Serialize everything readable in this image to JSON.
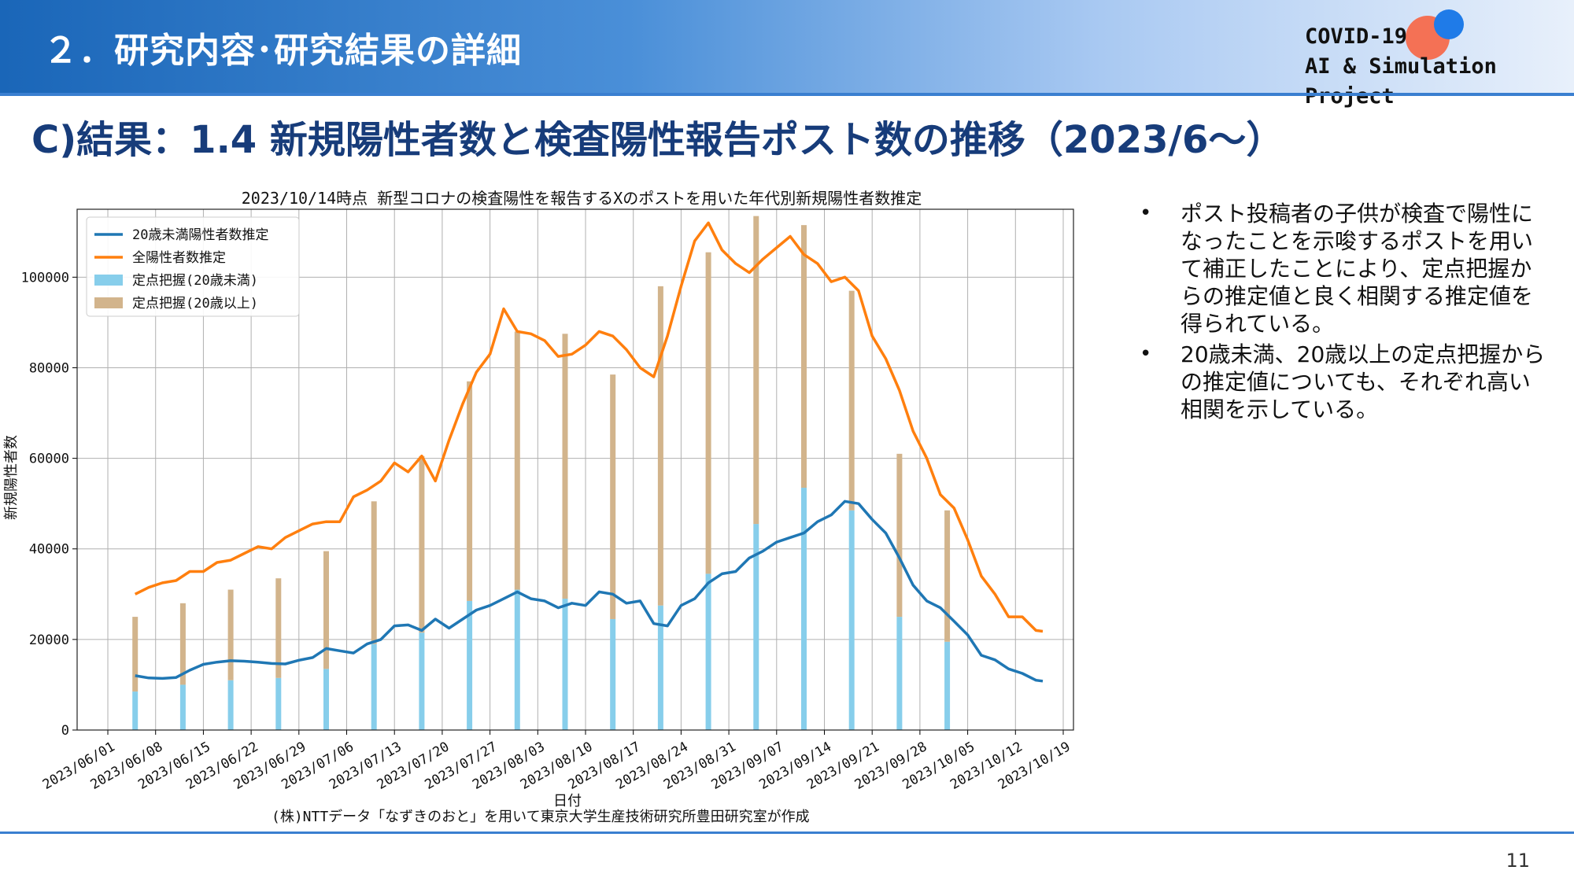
{
  "header": {
    "title": "２．研究内容･研究結果の詳細",
    "logo_line1": "COVID-19",
    "logo_line2": "AI & Simulation Project"
  },
  "subtitle": "C)結果：1.4 新規陽性者数と検査陽性報告ポスト数の推移（2023/6～）",
  "bullets": [
    "ポスト投稿者の子供が検査で陽性になったことを示唆するポストを用いて補正したことにより、定点把握からの推定値と良く相関する推定値を得られている。",
    "20歳未満、20歳以上の定点把握からの推定値についても、それぞれ高い相関を示している。"
  ],
  "page_number": "11",
  "colors": {
    "under20_line": "#1f77b4",
    "total_line": "#ff7f0e",
    "under20_bar": "#87ceeb",
    "over20_bar": "#d2b48c"
  },
  "chart_data": {
    "type": "line",
    "title": "2023/10/14時点 新型コロナの検査陽性を報告するXのポストを用いた年代別新規陽性者数推定",
    "xlabel": "日付",
    "ylabel": "新規陽性者数",
    "caption": "(株)NTTデータ「なずきのおと」を用いて東京大学生産技術研究所豊田研究室が作成",
    "x_range": [
      "2023-06-01",
      "2023-10-19"
    ],
    "ylim": [
      0,
      115000
    ],
    "x_ticks": [
      "2023/06/01",
      "2023/06/08",
      "2023/06/15",
      "2023/06/22",
      "2023/06/29",
      "2023/07/06",
      "2023/07/13",
      "2023/07/20",
      "2023/07/27",
      "2023/08/03",
      "2023/08/10",
      "2023/08/17",
      "2023/08/24",
      "2023/08/31",
      "2023/09/07",
      "2023/09/14",
      "2023/09/21",
      "2023/09/28",
      "2023/10/05",
      "2023/10/12",
      "2023/10/19"
    ],
    "y_ticks": [
      0,
      20000,
      40000,
      60000,
      80000,
      100000
    ],
    "grid": true,
    "legend_position": "top-left",
    "legend": [
      "20歳未満陽性者数推定",
      "全陽性者数推定",
      "定点把握(20歳未満)",
      "定点把握(20歳以上)"
    ],
    "series": [
      {
        "name": "20歳未満陽性者数推定",
        "kind": "line",
        "points": [
          [
            "2023-06-05",
            12000
          ],
          [
            "2023-06-07",
            11500
          ],
          [
            "2023-06-09",
            11400
          ],
          [
            "2023-06-11",
            11600
          ],
          [
            "2023-06-13",
            13200
          ],
          [
            "2023-06-15",
            14500
          ],
          [
            "2023-06-17",
            15000
          ],
          [
            "2023-06-19",
            15300
          ],
          [
            "2023-06-21",
            15200
          ],
          [
            "2023-06-23",
            15000
          ],
          [
            "2023-06-25",
            14700
          ],
          [
            "2023-06-27",
            14600
          ],
          [
            "2023-06-29",
            15400
          ],
          [
            "2023-07-01",
            16000
          ],
          [
            "2023-07-03",
            18000
          ],
          [
            "2023-07-05",
            17500
          ],
          [
            "2023-07-07",
            17000
          ],
          [
            "2023-07-09",
            19000
          ],
          [
            "2023-07-11",
            20000
          ],
          [
            "2023-07-13",
            23000
          ],
          [
            "2023-07-15",
            23200
          ],
          [
            "2023-07-17",
            22000
          ],
          [
            "2023-07-19",
            24500
          ],
          [
            "2023-07-21",
            22500
          ],
          [
            "2023-07-23",
            24500
          ],
          [
            "2023-07-25",
            26500
          ],
          [
            "2023-07-27",
            27500
          ],
          [
            "2023-07-29",
            29000
          ],
          [
            "2023-07-31",
            30500
          ],
          [
            "2023-08-02",
            29000
          ],
          [
            "2023-08-04",
            28500
          ],
          [
            "2023-08-06",
            27000
          ],
          [
            "2023-08-08",
            28000
          ],
          [
            "2023-08-10",
            27500
          ],
          [
            "2023-08-12",
            30500
          ],
          [
            "2023-08-14",
            30000
          ],
          [
            "2023-08-16",
            28000
          ],
          [
            "2023-08-18",
            28500
          ],
          [
            "2023-08-20",
            23500
          ],
          [
            "2023-08-22",
            23000
          ],
          [
            "2023-08-24",
            27500
          ],
          [
            "2023-08-26",
            29000
          ],
          [
            "2023-08-28",
            32500
          ],
          [
            "2023-08-30",
            34500
          ],
          [
            "2023-09-01",
            35000
          ],
          [
            "2023-09-03",
            38000
          ],
          [
            "2023-09-05",
            39500
          ],
          [
            "2023-09-07",
            41500
          ],
          [
            "2023-09-09",
            42500
          ],
          [
            "2023-09-11",
            43500
          ],
          [
            "2023-09-13",
            46000
          ],
          [
            "2023-09-15",
            47500
          ],
          [
            "2023-09-17",
            50500
          ],
          [
            "2023-09-19",
            50000
          ],
          [
            "2023-09-21",
            46500
          ],
          [
            "2023-09-23",
            43500
          ],
          [
            "2023-09-25",
            38000
          ],
          [
            "2023-09-27",
            32000
          ],
          [
            "2023-09-29",
            28500
          ],
          [
            "2023-10-01",
            27000
          ],
          [
            "2023-10-03",
            24000
          ],
          [
            "2023-10-05",
            21000
          ],
          [
            "2023-10-07",
            16500
          ],
          [
            "2023-10-09",
            15500
          ],
          [
            "2023-10-11",
            13500
          ],
          [
            "2023-10-13",
            12500
          ],
          [
            "2023-10-15",
            11000
          ],
          [
            "2023-10-16",
            10800
          ]
        ]
      },
      {
        "name": "全陽性者数推定",
        "kind": "line",
        "points": [
          [
            "2023-06-05",
            30000
          ],
          [
            "2023-06-07",
            31500
          ],
          [
            "2023-06-09",
            32500
          ],
          [
            "2023-06-11",
            33000
          ],
          [
            "2023-06-13",
            35000
          ],
          [
            "2023-06-15",
            35000
          ],
          [
            "2023-06-17",
            37000
          ],
          [
            "2023-06-19",
            37500
          ],
          [
            "2023-06-21",
            39000
          ],
          [
            "2023-06-23",
            40500
          ],
          [
            "2023-06-25",
            40000
          ],
          [
            "2023-06-27",
            42500
          ],
          [
            "2023-06-29",
            44000
          ],
          [
            "2023-07-01",
            45500
          ],
          [
            "2023-07-03",
            46000
          ],
          [
            "2023-07-05",
            46000
          ],
          [
            "2023-07-07",
            51500
          ],
          [
            "2023-07-09",
            53000
          ],
          [
            "2023-07-11",
            55000
          ],
          [
            "2023-07-13",
            59000
          ],
          [
            "2023-07-15",
            57000
          ],
          [
            "2023-07-17",
            60500
          ],
          [
            "2023-07-19",
            55000
          ],
          [
            "2023-07-21",
            64000
          ],
          [
            "2023-07-23",
            72000
          ],
          [
            "2023-07-25",
            79000
          ],
          [
            "2023-07-27",
            83000
          ],
          [
            "2023-07-29",
            93000
          ],
          [
            "2023-07-31",
            88000
          ],
          [
            "2023-08-02",
            87500
          ],
          [
            "2023-08-04",
            86000
          ],
          [
            "2023-08-06",
            82500
          ],
          [
            "2023-08-08",
            83000
          ],
          [
            "2023-08-10",
            85000
          ],
          [
            "2023-08-12",
            88000
          ],
          [
            "2023-08-14",
            87000
          ],
          [
            "2023-08-16",
            84000
          ],
          [
            "2023-08-18",
            80000
          ],
          [
            "2023-08-20",
            78000
          ],
          [
            "2023-08-22",
            87000
          ],
          [
            "2023-08-24",
            98000
          ],
          [
            "2023-08-26",
            108000
          ],
          [
            "2023-08-28",
            112000
          ],
          [
            "2023-08-30",
            106000
          ],
          [
            "2023-09-01",
            103000
          ],
          [
            "2023-09-03",
            101000
          ],
          [
            "2023-09-05",
            104000
          ],
          [
            "2023-09-07",
            106500
          ],
          [
            "2023-09-09",
            109000
          ],
          [
            "2023-09-11",
            105000
          ],
          [
            "2023-09-13",
            103000
          ],
          [
            "2023-09-15",
            99000
          ],
          [
            "2023-09-17",
            100000
          ],
          [
            "2023-09-19",
            97000
          ],
          [
            "2023-09-21",
            87000
          ],
          [
            "2023-09-23",
            82000
          ],
          [
            "2023-09-25",
            75000
          ],
          [
            "2023-09-27",
            66000
          ],
          [
            "2023-09-29",
            60000
          ],
          [
            "2023-10-01",
            52000
          ],
          [
            "2023-10-03",
            49000
          ],
          [
            "2023-10-05",
            42000
          ],
          [
            "2023-10-07",
            34000
          ],
          [
            "2023-10-09",
            30000
          ],
          [
            "2023-10-11",
            25000
          ],
          [
            "2023-10-13",
            25000
          ],
          [
            "2023-10-15",
            22000
          ],
          [
            "2023-10-16",
            21800
          ]
        ]
      },
      {
        "name": "定点把握(20歳未満)",
        "kind": "bar",
        "points": [
          [
            "2023-06-05",
            8500
          ],
          [
            "2023-06-12",
            10000
          ],
          [
            "2023-06-19",
            11000
          ],
          [
            "2023-06-26",
            11500
          ],
          [
            "2023-07-03",
            13500
          ],
          [
            "2023-07-10",
            19000
          ],
          [
            "2023-07-17",
            21500
          ],
          [
            "2023-07-24",
            28500
          ],
          [
            "2023-07-31",
            31000
          ],
          [
            "2023-08-07",
            29000
          ],
          [
            "2023-08-14",
            24500
          ],
          [
            "2023-08-21",
            27500
          ],
          [
            "2023-08-28",
            34500
          ],
          [
            "2023-09-04",
            45500
          ],
          [
            "2023-09-11",
            53500
          ],
          [
            "2023-09-18",
            48500
          ],
          [
            "2023-09-25",
            25000
          ],
          [
            "2023-10-02",
            19500
          ]
        ]
      },
      {
        "name": "定点把握(20歳以上)",
        "kind": "bar",
        "points": [
          [
            "2023-06-05",
            16500
          ],
          [
            "2023-06-12",
            18000
          ],
          [
            "2023-06-19",
            20000
          ],
          [
            "2023-06-26",
            22000
          ],
          [
            "2023-07-03",
            26000
          ],
          [
            "2023-07-10",
            31500
          ],
          [
            "2023-07-17",
            39000
          ],
          [
            "2023-07-24",
            48500
          ],
          [
            "2023-07-31",
            57000
          ],
          [
            "2023-08-07",
            58500
          ],
          [
            "2023-08-14",
            54000
          ],
          [
            "2023-08-21",
            70500
          ],
          [
            "2023-08-28",
            71000
          ],
          [
            "2023-09-04",
            68000
          ],
          [
            "2023-09-11",
            58000
          ],
          [
            "2023-09-18",
            48500
          ],
          [
            "2023-09-25",
            36000
          ],
          [
            "2023-10-02",
            29000
          ]
        ]
      }
    ]
  }
}
